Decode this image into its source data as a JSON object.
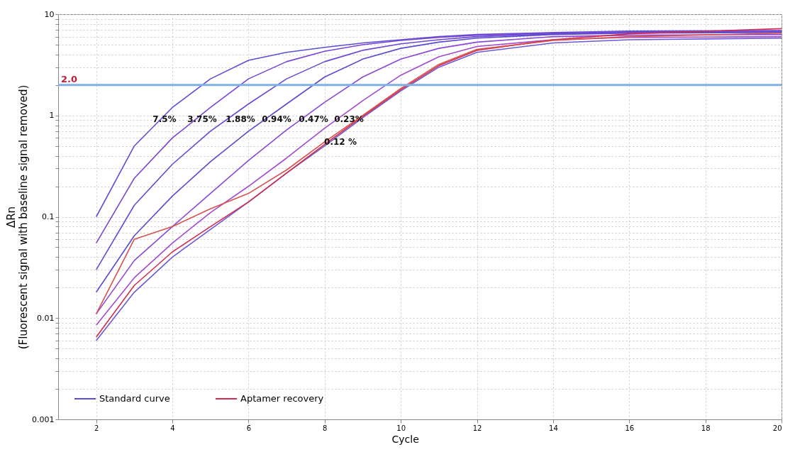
{
  "chart_data": {
    "type": "line",
    "xlabel": "Cycle",
    "ylabel": "ΔRn\n(Fluorescent signal with baseline signal removed)",
    "x": [
      2,
      3,
      4,
      5,
      6,
      7,
      8,
      9,
      10,
      11,
      12,
      14,
      16,
      20
    ],
    "series": [
      {
        "name": "Standard curve",
        "color": "#5b4fd6",
        "values": [
          0.1,
          0.5,
          1.2,
          2.3,
          3.5,
          4.2,
          4.7,
          5.2,
          5.6,
          6.0,
          6.3,
          6.6,
          6.8,
          6.9
        ]
      },
      {
        "color": "#7a45d0",
        "values": [
          0.055,
          0.24,
          0.6,
          1.2,
          2.3,
          3.4,
          4.3,
          5.0,
          5.5,
          5.9,
          6.2,
          6.5,
          6.7,
          6.8
        ]
      },
      {
        "color": "#6a48d4",
        "values": [
          0.03,
          0.13,
          0.33,
          0.7,
          1.3,
          2.3,
          3.4,
          4.4,
          5.1,
          5.6,
          6.0,
          6.4,
          6.6,
          6.7
        ]
      },
      {
        "color": "#5a4ccf",
        "values": [
          0.018,
          0.065,
          0.16,
          0.35,
          0.7,
          1.3,
          2.4,
          3.6,
          4.6,
          5.3,
          5.8,
          6.3,
          6.5,
          6.6
        ]
      },
      {
        "color": "#8a48d8",
        "values": [
          0.011,
          0.037,
          0.08,
          0.17,
          0.36,
          0.72,
          1.35,
          2.4,
          3.6,
          4.6,
          5.3,
          6.0,
          6.2,
          6.3
        ]
      },
      {
        "color": "#a34ad0",
        "values": [
          0.0085,
          0.025,
          0.055,
          0.11,
          0.2,
          0.38,
          0.75,
          1.4,
          2.5,
          3.8,
          4.8,
          5.6,
          5.9,
          6.0
        ]
      },
      {
        "color": "#6b5ad8",
        "values": [
          0.006,
          0.018,
          0.04,
          0.075,
          0.14,
          0.27,
          0.5,
          0.95,
          1.75,
          3.0,
          4.2,
          5.2,
          5.6,
          5.8
        ]
      },
      {
        "name": "Aptamer recovery",
        "color": "#d12d4f",
        "values": [
          0.0065,
          0.021,
          0.045,
          0.08,
          0.14,
          0.27,
          0.52,
          0.98,
          1.8,
          3.1,
          4.4,
          5.6,
          6.4,
          7.2
        ]
      },
      {
        "color": "#d6524e",
        "values": [
          0.011,
          0.06,
          0.08,
          0.12,
          0.17,
          0.29,
          0.55,
          1.0,
          1.85,
          3.2,
          4.5,
          5.5,
          6.0,
          6.5
        ]
      }
    ],
    "log": true,
    "xlim": [
      1,
      20
    ],
    "xticks": [
      2,
      4,
      6,
      8,
      10,
      12,
      14,
      16,
      18,
      20
    ],
    "ylim": [
      0.001,
      10
    ],
    "yticks": [
      0.001,
      {
        "value": 0.002,
        "label": null
      },
      {
        "value": 0.003,
        "label": null
      },
      {
        "value": 0.004,
        "label": null
      },
      {
        "value": 0.005,
        "label": null
      },
      {
        "value": 0.006,
        "label": null
      },
      {
        "value": 0.007,
        "label": null
      },
      {
        "value": 0.008,
        "label": null
      },
      {
        "value": 0.009,
        "label": null
      },
      0.01,
      {
        "value": 0.02,
        "label": null
      },
      {
        "value": 0.03,
        "label": null
      },
      {
        "value": 0.04,
        "label": null
      },
      {
        "value": 0.05,
        "label": null
      },
      {
        "value": 0.06,
        "label": null
      },
      {
        "value": 0.07,
        "label": null
      },
      {
        "value": 0.08,
        "label": null
      },
      {
        "value": 0.09,
        "label": null
      },
      0.1,
      {
        "value": 0.2,
        "label": null
      },
      {
        "value": 0.3,
        "label": null
      },
      {
        "value": 0.4,
        "label": null
      },
      {
        "value": 0.5,
        "label": null
      },
      {
        "value": 0.6,
        "label": null
      },
      {
        "value": 0.7,
        "label": null
      },
      {
        "value": 0.8,
        "label": null
      },
      {
        "value": 0.9,
        "label": null
      },
      1,
      {
        "value": 2,
        "label": null
      },
      {
        "value": 3,
        "label": null
      },
      {
        "value": 4,
        "label": null
      },
      {
        "value": 5,
        "label": null
      },
      {
        "value": 6,
        "label": null
      },
      {
        "value": 7,
        "label": null
      },
      {
        "value": 8,
        "label": null
      },
      {
        "value": 9,
        "label": null
      },
      10
    ],
    "grid": true,
    "legend": "bottom left",
    "line_style": "solid",
    "marker": "none",
    "ref_lines": [
      {
        "axis": "y",
        "value": 2,
        "label": "2.0",
        "color": "#7fb0e6"
      }
    ],
    "annotations": [
      "7.5%",
      "3.75%",
      "1.88%",
      "0.94%",
      "0.47%",
      "0.23%",
      "0.12 %"
    ]
  }
}
